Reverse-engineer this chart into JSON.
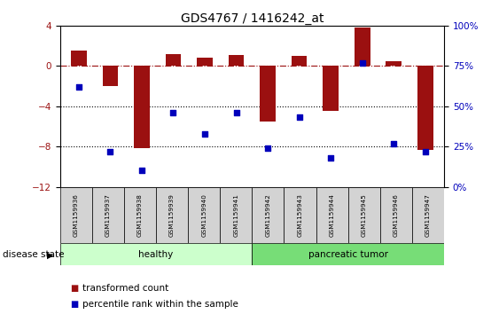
{
  "title": "GDS4767 / 1416242_at",
  "samples": [
    "GSM1159936",
    "GSM1159937",
    "GSM1159938",
    "GSM1159939",
    "GSM1159940",
    "GSM1159941",
    "GSM1159942",
    "GSM1159943",
    "GSM1159944",
    "GSM1159945",
    "GSM1159946",
    "GSM1159947"
  ],
  "bar_values": [
    1.5,
    -2.0,
    -8.2,
    1.2,
    0.8,
    1.1,
    -5.5,
    1.0,
    -4.5,
    3.8,
    0.5,
    -8.3
  ],
  "dot_values": [
    62,
    22,
    10,
    46,
    33,
    46,
    24,
    43,
    18,
    77,
    27,
    22
  ],
  "bar_color": "#9B1010",
  "dot_color": "#0000BB",
  "ylim_left": [
    -12,
    4
  ],
  "ylim_right": [
    0,
    100
  ],
  "yticks_left": [
    -12,
    -8,
    -4,
    0,
    4
  ],
  "yticks_right": [
    0,
    25,
    50,
    75,
    100
  ],
  "dotted_lines": [
    -4,
    -8
  ],
  "healthy_count": 6,
  "tumor_count": 6,
  "healthy_label": "healthy",
  "tumor_label": "pancreatic tumor",
  "healthy_color": "#CCFFCC",
  "tumor_color": "#77DD77",
  "disease_state_label": "disease state",
  "legend_bar_label": "transformed count",
  "legend_dot_label": "percentile rank within the sample",
  "bg_color": "#FFFFFF",
  "sample_bg_color": "#D3D3D3"
}
